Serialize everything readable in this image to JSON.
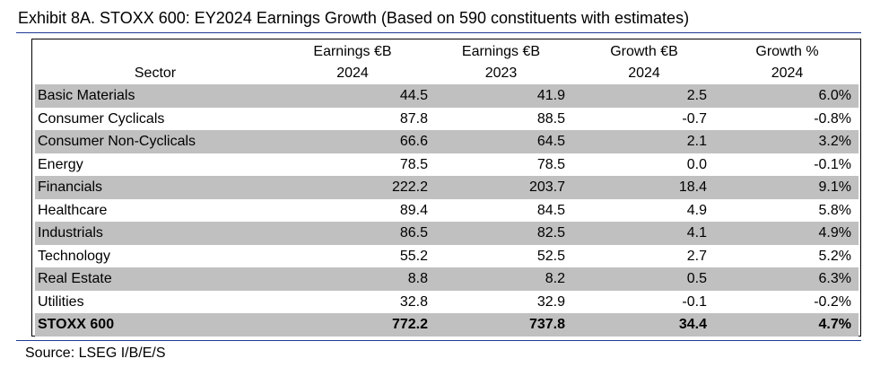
{
  "title": "Exhibit 8A.  STOXX 600: EY2024 Earnings Growth (Based on 590 constituents with estimates)",
  "source": "Source: LSEG I/B/E/S",
  "colors": {
    "row_shade": "#c0c0c0",
    "rule": "#1f3a93"
  },
  "chart_data": {
    "type": "table",
    "title": "Exhibit 8A.  STOXX 600: EY2024 Earnings Growth (Based on 590 constituents with estimates)",
    "columns": [
      {
        "line1": "",
        "line2": "Sector"
      },
      {
        "line1": "Earnings €B",
        "line2": "2024"
      },
      {
        "line1": "Earnings €B",
        "line2": "2023"
      },
      {
        "line1": "Growth €B",
        "line2": "2024"
      },
      {
        "line1": "Growth %",
        "line2": "2024"
      }
    ],
    "rows": [
      {
        "sector": "Basic Materials",
        "earnings_2024": "44.5",
        "earnings_2023": "41.9",
        "growth_eur": "2.5",
        "growth_pct": "6.0%"
      },
      {
        "sector": "Consumer Cyclicals",
        "earnings_2024": "87.8",
        "earnings_2023": "88.5",
        "growth_eur": "-0.7",
        "growth_pct": "-0.8%"
      },
      {
        "sector": "Consumer Non-Cyclicals",
        "earnings_2024": "66.6",
        "earnings_2023": "64.5",
        "growth_eur": "2.1",
        "growth_pct": "3.2%"
      },
      {
        "sector": "Energy",
        "earnings_2024": "78.5",
        "earnings_2023": "78.5",
        "growth_eur": "0.0",
        "growth_pct": "-0.1%"
      },
      {
        "sector": "Financials",
        "earnings_2024": "222.2",
        "earnings_2023": "203.7",
        "growth_eur": "18.4",
        "growth_pct": "9.1%"
      },
      {
        "sector": "Healthcare",
        "earnings_2024": "89.4",
        "earnings_2023": "84.5",
        "growth_eur": "4.9",
        "growth_pct": "5.8%"
      },
      {
        "sector": "Industrials",
        "earnings_2024": "86.5",
        "earnings_2023": "82.5",
        "growth_eur": "4.1",
        "growth_pct": "4.9%"
      },
      {
        "sector": "Technology",
        "earnings_2024": "55.2",
        "earnings_2023": "52.5",
        "growth_eur": "2.7",
        "growth_pct": "5.2%"
      },
      {
        "sector": "Real Estate",
        "earnings_2024": "8.8",
        "earnings_2023": "8.2",
        "growth_eur": "0.5",
        "growth_pct": "6.3%"
      },
      {
        "sector": "Utilities",
        "earnings_2024": "32.8",
        "earnings_2023": "32.9",
        "growth_eur": "-0.1",
        "growth_pct": "-0.2%"
      }
    ],
    "total": {
      "sector": "STOXX 600",
      "earnings_2024": "772.2",
      "earnings_2023": "737.8",
      "growth_eur": "34.4",
      "growth_pct": "4.7%"
    }
  }
}
